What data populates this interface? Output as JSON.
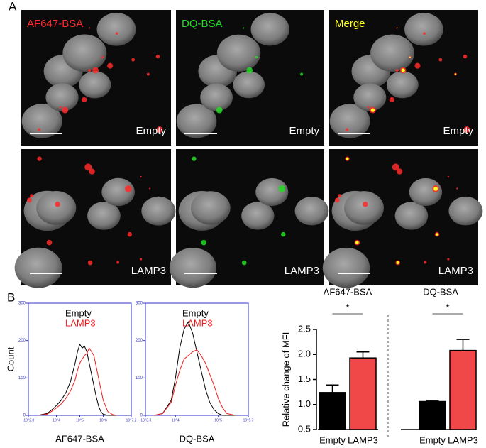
{
  "panel_labels": [
    "A",
    "B"
  ],
  "microscopy": {
    "channels": [
      "AF647-BSA",
      "DQ-BSA",
      "Merge"
    ],
    "channel_colors": [
      "#ff2a2a",
      "#22dd22",
      "#ffff22"
    ],
    "conditions": [
      "Empty",
      "LAMP3"
    ]
  },
  "chart_data": [
    {
      "type": "line",
      "xlabel": "AF647-BSA",
      "ylabel": "Count",
      "xlim": [
        2.8,
        7.2
      ],
      "xticks": [
        {
          "value": 2.8,
          "label": "-10^2.8"
        },
        {
          "value": 4,
          "label": "10^4"
        },
        {
          "value": 5,
          "label": "10^5"
        },
        {
          "value": 6,
          "label": "10^6"
        },
        {
          "value": 7.2,
          "label": "10^7.2"
        }
      ],
      "ylim": [
        0,
        300
      ],
      "yticks": [
        0,
        100,
        200,
        300
      ],
      "x": [
        3.2,
        3.6,
        3.9,
        4.2,
        4.4,
        4.6,
        4.8,
        4.9,
        5.0,
        5.1,
        5.2,
        5.3,
        5.4,
        5.5,
        5.6,
        5.7,
        5.8,
        5.9,
        6.0,
        6.2,
        6.4,
        6.6
      ],
      "series": [
        {
          "name": "Empty",
          "color": "#000000",
          "values": [
            0,
            5,
            20,
            40,
            60,
            90,
            140,
            170,
            190,
            180,
            185,
            170,
            140,
            110,
            80,
            50,
            25,
            10,
            3,
            0,
            0,
            0
          ]
        },
        {
          "name": "LAMP3",
          "color": "#ee1c1c",
          "values": [
            0,
            3,
            15,
            30,
            45,
            65,
            95,
            120,
            140,
            150,
            160,
            165,
            180,
            170,
            160,
            130,
            100,
            70,
            40,
            10,
            2,
            0
          ]
        }
      ]
    },
    {
      "type": "line",
      "xlabel": "DQ-BSA",
      "xlim": [
        3.3,
        5.7
      ],
      "xticks": [
        {
          "value": 3.3,
          "label": "-10^3.3"
        },
        {
          "value": 4,
          "label": "10^4"
        },
        {
          "value": 5,
          "label": "10^5"
        },
        {
          "value": 5.7,
          "label": "10^5.7"
        }
      ],
      "ylim": [
        0,
        300
      ],
      "yticks": [
        0,
        100,
        200,
        300
      ],
      "x": [
        3.5,
        3.7,
        3.9,
        4.0,
        4.1,
        4.2,
        4.3,
        4.4,
        4.5,
        4.6,
        4.7,
        4.8,
        4.9,
        5.0,
        5.1,
        5.2,
        5.4
      ],
      "series": [
        {
          "name": "Empty",
          "color": "#000000",
          "values": [
            0,
            5,
            40,
            100,
            180,
            230,
            250,
            220,
            170,
            120,
            70,
            35,
            15,
            5,
            0,
            0,
            0
          ]
        },
        {
          "name": "LAMP3",
          "color": "#ee1c1c",
          "values": [
            0,
            5,
            35,
            80,
            120,
            150,
            160,
            170,
            175,
            160,
            140,
            110,
            80,
            45,
            20,
            5,
            0
          ]
        }
      ]
    },
    {
      "type": "groupbar",
      "ylabel": "Relative change of MFI",
      "ylim": [
        0.5,
        2.5
      ],
      "yticks": [
        0.5,
        {
          "value": 1,
          "label": "1.0"
        },
        1.5,
        {
          "value": 2,
          "label": "2.0"
        },
        2.5
      ],
      "categories": [
        "Empty",
        "LAMP3"
      ],
      "colors": [
        "#000000",
        "#f04848"
      ],
      "series": [
        {
          "name": "AF647-BSA",
          "values": [
            1.24,
            1.93
          ],
          "errors": [
            0.15,
            0.12
          ],
          "annotation": "*"
        },
        {
          "name": "DQ-BSA",
          "values": [
            1.06,
            2.08
          ],
          "errors": [
            0.02,
            0.22
          ],
          "annotation": "*"
        }
      ]
    }
  ]
}
